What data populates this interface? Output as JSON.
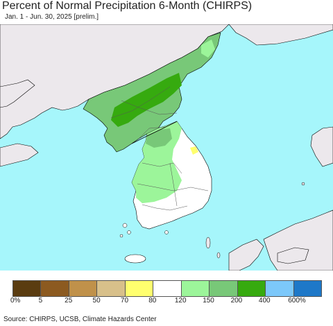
{
  "header": {
    "title": "Percent of Normal Precipitation 6-Month (CHIRPS)",
    "subtitle": "Jan. 1 - Jun. 30, 2025 [prelim.]"
  },
  "colors": {
    "sea": "#a6f6fb",
    "foreign_land": "#ece8ec",
    "border_line": "#555555",
    "coast_line": "#000000"
  },
  "legend": {
    "swatches": [
      {
        "color": "#5a3c10"
      },
      {
        "color": "#8c5a20"
      },
      {
        "color": "#c0914a"
      },
      {
        "color": "#d8c08a"
      },
      {
        "color": "#ffff6e"
      },
      {
        "color": "#ffffff"
      },
      {
        "color": "#9cf59a"
      },
      {
        "color": "#78c878"
      },
      {
        "color": "#36aa0f"
      },
      {
        "color": "#7cc8fa"
      },
      {
        "color": "#1e78c8"
      }
    ],
    "ticks": [
      "0%",
      "5",
      "25",
      "50",
      "70",
      "80",
      "120",
      "150",
      "200",
      "400",
      "600%"
    ]
  },
  "regions": [
    {
      "name": "north-korea-northeast",
      "category": "150-200"
    },
    {
      "name": "north-korea-interior",
      "category": "200-400"
    },
    {
      "name": "north-korea-west",
      "category": "150-200"
    },
    {
      "name": "south-korea-northwest",
      "category": "120-150"
    },
    {
      "name": "south-korea-east-south",
      "category": "80-120"
    },
    {
      "name": "south-korea-east-coast-spot",
      "category": "70-80"
    }
  ],
  "footer": {
    "source": "Source: CHIRPS, UCSB, Climate Hazards Center"
  }
}
